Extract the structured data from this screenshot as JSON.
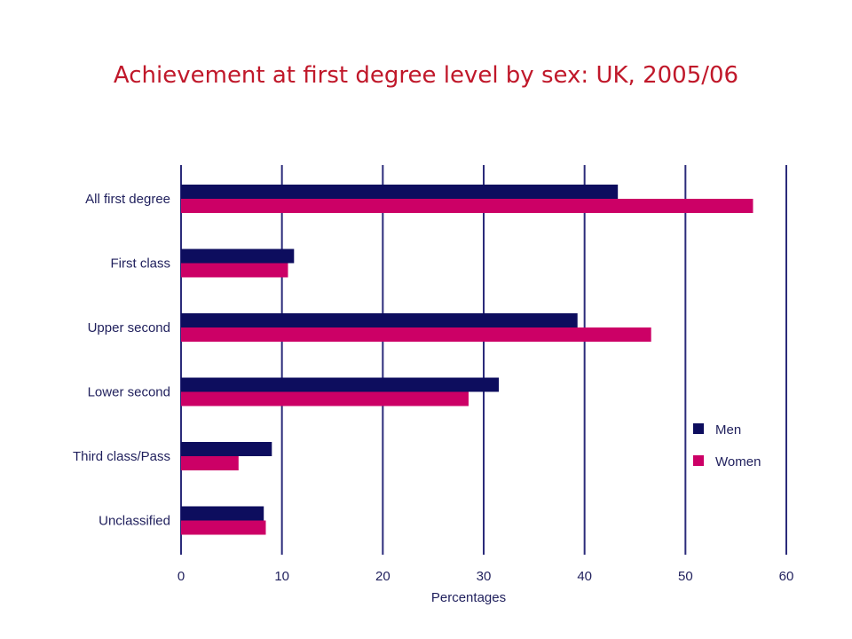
{
  "slide": {
    "title": "Achievement at first degree level by sex: UK, 2005/06"
  },
  "colors": {
    "men": "#0d0d5e",
    "women": "#cc0066",
    "axis": "#2b2b7a",
    "title": "#c0182a"
  },
  "chart_data": {
    "type": "bar",
    "orientation": "horizontal",
    "title": "Achievement at first degree level by sex: UK, 2005/06",
    "categories": [
      "All first degree",
      "First class",
      "Upper second",
      "Lower second",
      "Third class/Pass",
      "Unclassified"
    ],
    "series": [
      {
        "name": "Men",
        "values": [
          43.3,
          11.2,
          39.3,
          31.5,
          9.0,
          8.2
        ]
      },
      {
        "name": "Women",
        "values": [
          56.7,
          10.6,
          46.6,
          28.5,
          5.7,
          8.4
        ]
      }
    ],
    "xlabel": "Percentages",
    "ylabel": "",
    "xlim": [
      0,
      60
    ],
    "xticks": [
      "0",
      "10",
      "20",
      "30",
      "40",
      "50",
      "60"
    ],
    "grid": "vertical",
    "legend": {
      "position": "right",
      "entries": [
        "Men",
        "Women"
      ]
    }
  }
}
